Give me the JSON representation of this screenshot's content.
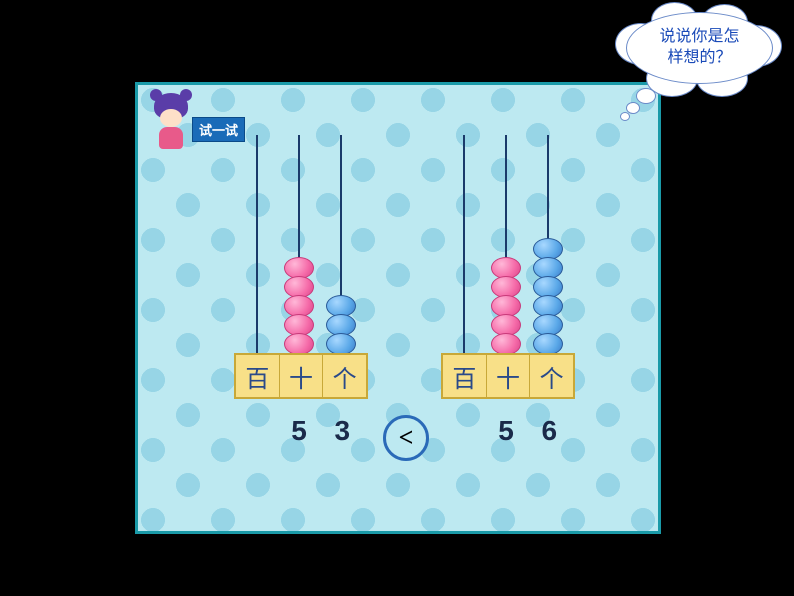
{
  "thought_bubble": {
    "line1": "说说你是怎",
    "line2": "样想的？",
    "text_color": "#1a4ab8",
    "border_color": "#6a8ac8",
    "background": "#ffffff"
  },
  "try_label": "试一试",
  "panel": {
    "border_color": "#1a9aa8",
    "background_color": "#bde9f1",
    "dot_color": "#97d5e6"
  },
  "place_labels": {
    "hundreds": "百",
    "tens": "十",
    "ones": "个",
    "box_background": "#f8e088",
    "box_border": "#c8a838",
    "text_color": "#2a4a8a"
  },
  "comparison": {
    "symbol": "<",
    "circle_border": "#2a6ab8"
  },
  "left_abacus": {
    "hundreds_beads": 0,
    "tens_beads": 5,
    "tens_color": "pink",
    "ones_beads": 3,
    "ones_color": "blue",
    "number_tens": "5",
    "number_ones": "3",
    "value": 53
  },
  "right_abacus": {
    "hundreds_beads": 0,
    "tens_beads": 5,
    "tens_color": "pink",
    "ones_beads": 6,
    "ones_color": "blue",
    "number_tens": "5",
    "number_ones": "6",
    "value": 56
  },
  "bead_colors": {
    "pink": "#f56aa8",
    "blue": "#5aa8e8"
  },
  "mascot": {
    "hair_color": "#5a3da8",
    "skin_color": "#fde0c8",
    "dress_color": "#e85a8a"
  }
}
